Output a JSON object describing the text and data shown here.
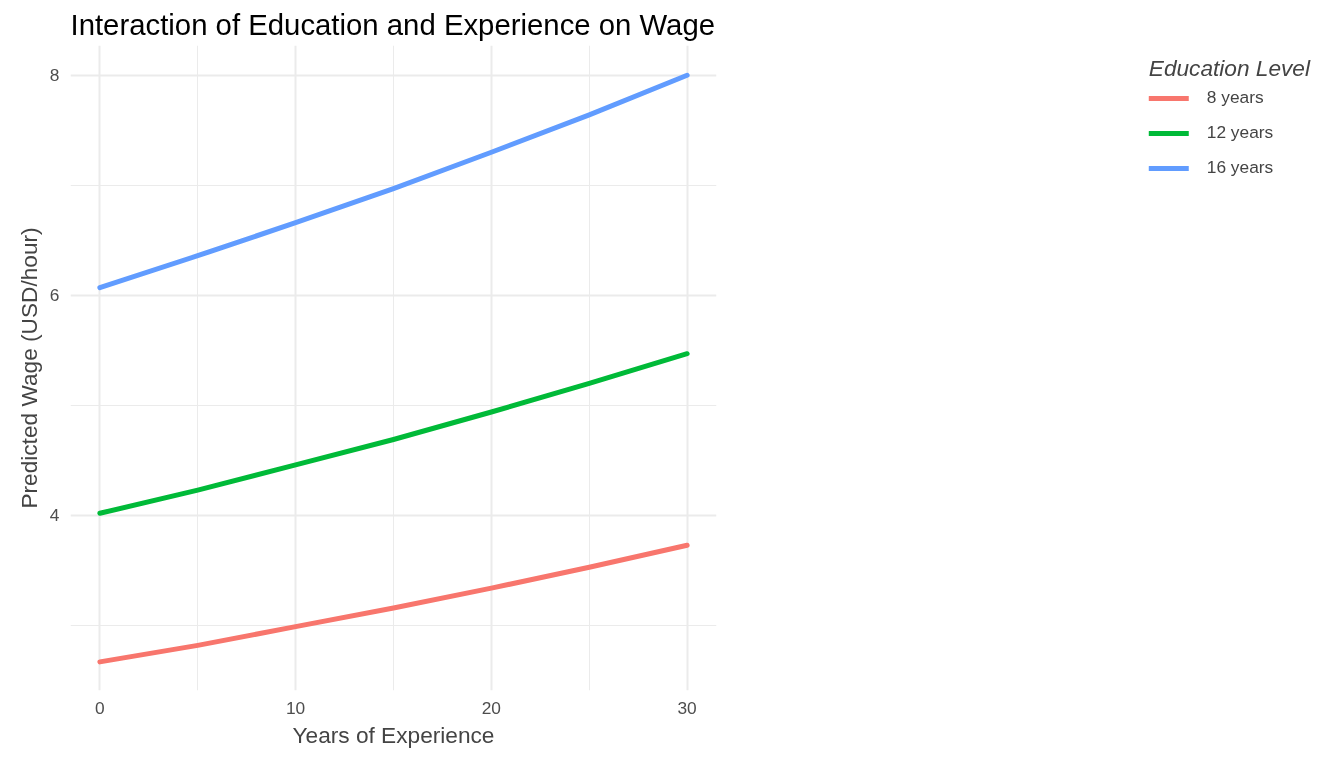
{
  "chart_data": {
    "type": "line",
    "title": "Interaction of Education and Experience on Wage",
    "xlabel": "Years of Experience",
    "ylabel": "Predicted Wage (USD/hour)",
    "legend_title": "Education Level",
    "x": [
      0,
      5,
      10,
      15,
      20,
      25,
      30
    ],
    "series": [
      {
        "name": "8 years",
        "color": "#f8766d",
        "values": [
          2.67,
          2.82,
          2.99,
          3.16,
          3.34,
          3.53,
          3.73
        ]
      },
      {
        "name": "12 years",
        "color": "#00ba38",
        "values": [
          4.02,
          4.23,
          4.46,
          4.69,
          4.94,
          5.2,
          5.47
        ]
      },
      {
        "name": "16 years",
        "color": "#619cff",
        "values": [
          6.07,
          6.36,
          6.66,
          6.97,
          7.3,
          7.64,
          8.0
        ]
      }
    ],
    "xlim": [
      -1.5,
      31.5
    ],
    "ylim": [
      2.41,
      8.27
    ],
    "xticks": [
      0,
      {
        "value": 5,
        "label": null
      },
      10,
      {
        "value": 15,
        "label": null
      },
      20,
      {
        "value": 25,
        "label": null
      },
      30
    ],
    "yticks": [
      {
        "value": 3,
        "label": null
      },
      4,
      {
        "value": 5,
        "label": null
      },
      6,
      {
        "value": 7,
        "label": null
      },
      8
    ],
    "grid": true,
    "legend": "right",
    "marker": "none",
    "line_style": "solid"
  }
}
